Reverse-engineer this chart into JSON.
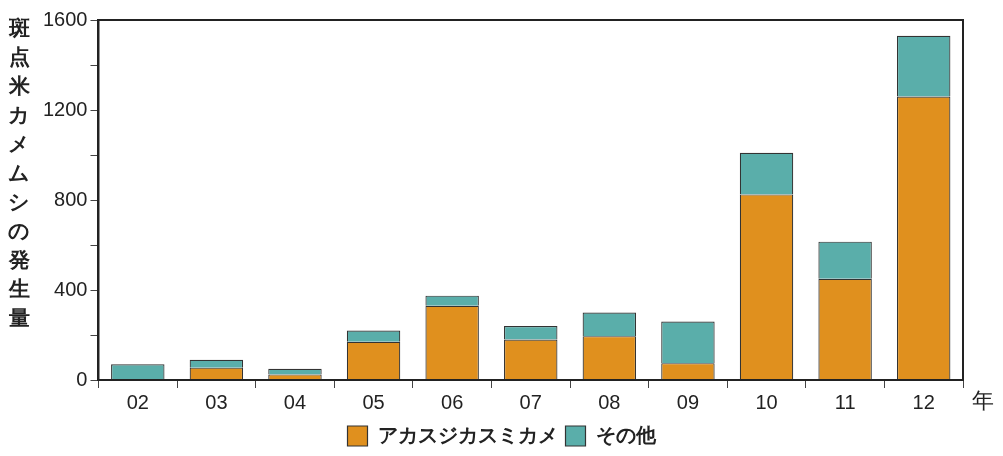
{
  "chart_data": {
    "type": "bar",
    "stacked": true,
    "ylabel": "斑点米カメムシの発生量",
    "xlabel": "年",
    "categories": [
      "02",
      "03",
      "04",
      "05",
      "06",
      "07",
      "08",
      "09",
      "10",
      "11",
      "12"
    ],
    "series": [
      {
        "name": "アカスジカスミカメ",
        "color": "#e0901e",
        "values": [
          0,
          55,
          25,
          170,
          330,
          180,
          195,
          75,
          825,
          450,
          1260
        ]
      },
      {
        "name": "その他",
        "color": "#5aaeaa",
        "values": [
          70,
          35,
          25,
          50,
          45,
          60,
          105,
          185,
          185,
          165,
          270
        ]
      }
    ],
    "ylim": [
      0,
      1600
    ],
    "yticks": [
      0,
      {
        "value": 200,
        "label": null
      },
      400,
      {
        "value": 600,
        "label": null
      },
      800,
      {
        "value": 1000,
        "label": null
      },
      1200,
      {
        "value": 1400,
        "label": null
      },
      1600
    ],
    "grid": false,
    "legend": "bottom"
  }
}
